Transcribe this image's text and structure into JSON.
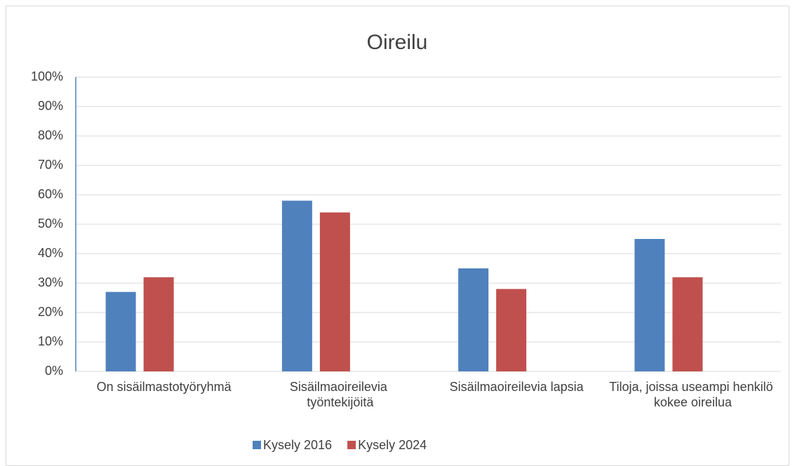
{
  "chart_data": {
    "type": "bar",
    "title": "Oireilu",
    "categories": [
      "On sisäilmastotyöryhmä",
      "Sisäilmaoireilevia työntekijöitä",
      "Sisäilmaoireilevia lapsia",
      "Tiloja, joissa useampi henkilö kokee oireilua"
    ],
    "series": [
      {
        "name": "Kysely 2016",
        "color": "#4f81bd",
        "values": [
          27,
          58,
          35,
          45
        ]
      },
      {
        "name": "Kysely 2024",
        "color": "#c0504d",
        "values": [
          32,
          54,
          28,
          32
        ]
      }
    ],
    "ylim": [
      0,
      100
    ],
    "yticks": [
      {
        "value": 0,
        "label": "0%"
      },
      {
        "value": 10,
        "label": "10%"
      },
      {
        "value": 20,
        "label": "20%"
      },
      {
        "value": 30,
        "label": "30%"
      },
      {
        "value": 40,
        "label": "40%"
      },
      {
        "value": 50,
        "label": "50%"
      },
      {
        "value": 60,
        "label": "60%"
      },
      {
        "value": 70,
        "label": "70%"
      },
      {
        "value": 80,
        "label": "80%"
      },
      {
        "value": 90,
        "label": "90%"
      },
      {
        "value": 100,
        "label": "100%"
      }
    ],
    "grid": true,
    "legend": "bottom"
  }
}
